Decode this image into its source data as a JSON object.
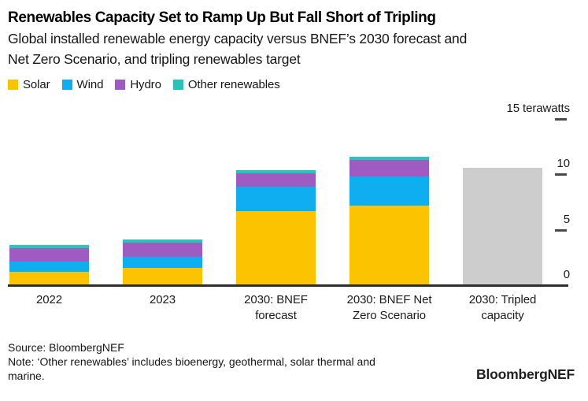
{
  "header": {
    "title": "Renewables Capacity Set to Ramp Up But Fall Short of Tripling",
    "subtitle": "Global installed renewable energy capacity versus BNEF’s 2030 forecast and\nNet Zero Scenario, and tripling renewables target"
  },
  "legend": {
    "items": [
      {
        "label": "Solar",
        "color": "#FCC400"
      },
      {
        "label": "Wind",
        "color": "#0FAEF0"
      },
      {
        "label": "Hydro",
        "color": "#9E5BC2"
      },
      {
        "label": "Other renewables",
        "color": "#2AC3B8"
      }
    ]
  },
  "chart_data": {
    "type": "bar",
    "stacked": true,
    "unit": "terawatts",
    "grid": false,
    "legend_position": "top-left",
    "ylim": [
      0,
      15.5
    ],
    "axis_side": "right",
    "yticks": [
      {
        "value": 15,
        "label": "15 terawatts",
        "dash": true
      },
      {
        "value": 10,
        "label": "10",
        "dash": true
      },
      {
        "value": 5,
        "label": "5",
        "dash": true
      },
      {
        "value": 0,
        "label": "0",
        "dash": false
      }
    ],
    "categories": [
      "2022",
      "2023",
      "2030: BNEF\nforecast",
      "2030: BNEF Net\nZero Scenario",
      "2030: Tripled\ncapacity"
    ],
    "series": [
      {
        "name": "Solar",
        "color": "#FCC400",
        "values": [
          1.1,
          1.5,
          6.6,
          7.1,
          0
        ]
      },
      {
        "name": "Wind",
        "color": "#0FAEF0",
        "values": [
          0.9,
          1.0,
          2.2,
          2.6,
          0
        ]
      },
      {
        "name": "Hydro",
        "color": "#9E5BC2",
        "values": [
          1.2,
          1.3,
          1.2,
          1.5,
          0
        ]
      },
      {
        "name": "Other renewables",
        "color": "#2AC3B8",
        "values": [
          0.3,
          0.3,
          0.25,
          0.3,
          0
        ]
      },
      {
        "name": "Tripled capacity (total, breakdown not shown)",
        "color": "#CDCDCD",
        "values": [
          0,
          0,
          0,
          0,
          10.5
        ]
      }
    ],
    "totals_estimated_tw": [
      3.5,
      4.1,
      10.25,
      11.5,
      10.5
    ]
  },
  "footer": {
    "source": "Source: BloombergNEF",
    "note": "Note: ‘Other renewables’ includes bioenergy, geothermal, solar thermal and\nmarine.",
    "logo": "BloombergNEF"
  }
}
